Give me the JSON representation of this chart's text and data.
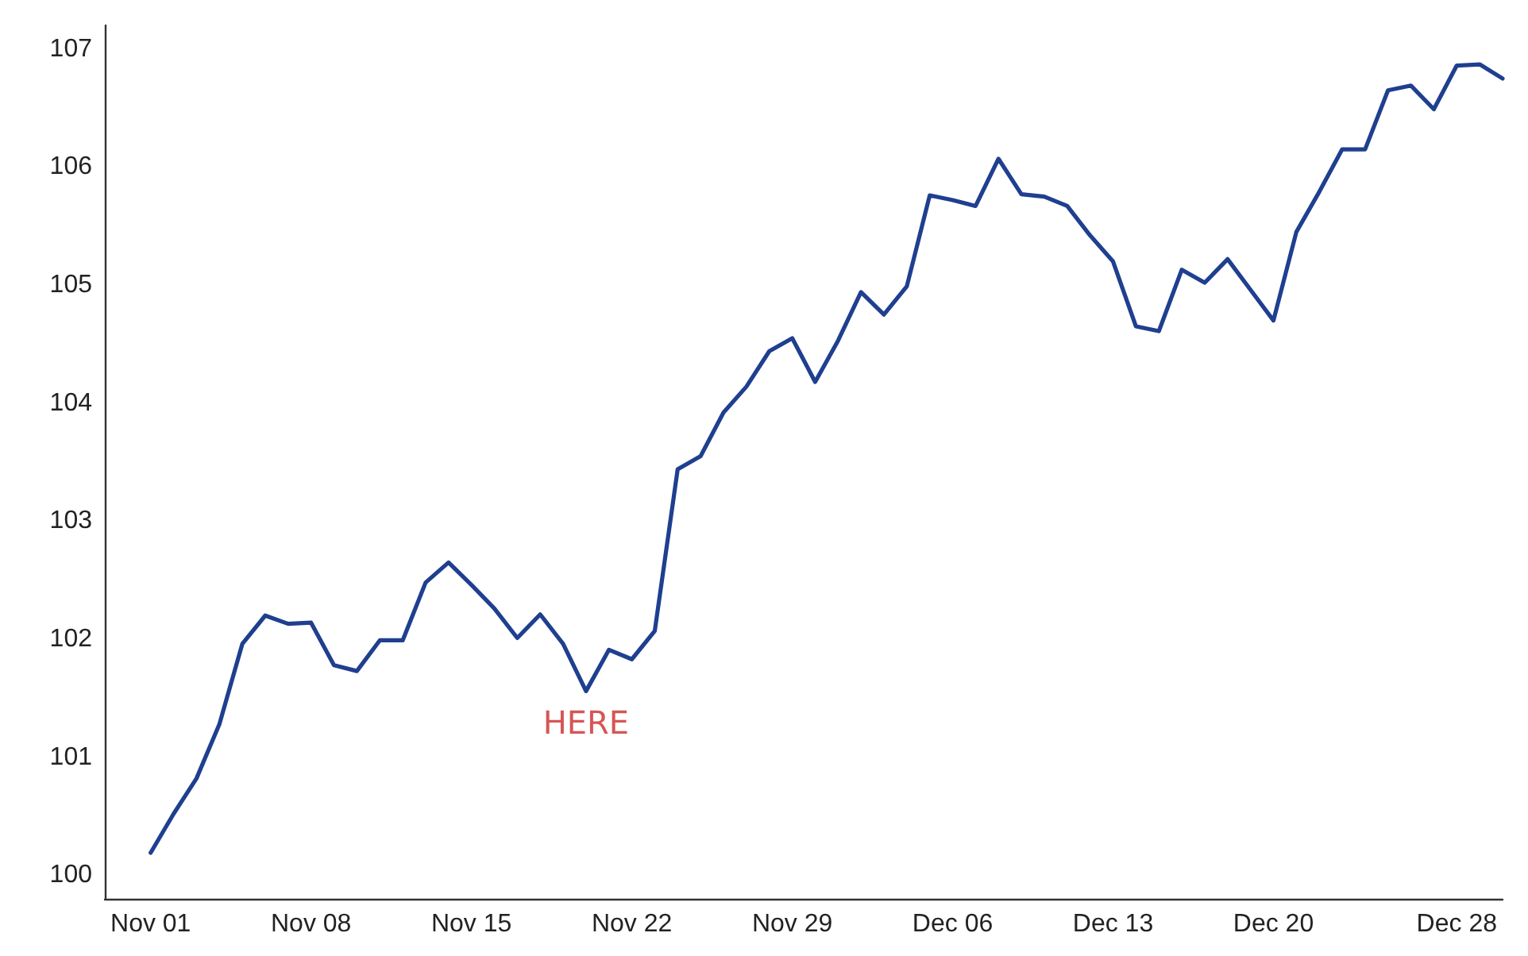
{
  "chart_data": {
    "type": "line",
    "x": [
      "--11-01",
      "--11-02",
      "--11-03",
      "--11-04",
      "--11-05",
      "--11-06",
      "--11-07",
      "--11-08",
      "--11-09",
      "--11-10",
      "--11-11",
      "--11-12",
      "--11-13",
      "--11-14",
      "--11-15",
      "--11-16",
      "--11-17",
      "--11-18",
      "--11-19",
      "--11-20",
      "--11-21",
      "--11-22",
      "--11-23",
      "--11-24",
      "--11-25",
      "--11-26",
      "--11-27",
      "--11-28",
      "--11-29",
      "--11-30",
      "--12-01",
      "--12-02",
      "--12-03",
      "--12-04",
      "--12-05",
      "--12-06",
      "--12-07",
      "--12-08",
      "--12-09",
      "--12-10",
      "--12-11",
      "--12-12",
      "--12-13",
      "--12-14",
      "--12-15",
      "--12-16",
      "--12-17",
      "--12-18",
      "--12-19",
      "--12-20",
      "--12-21",
      "--12-22",
      "--12-23",
      "--12-24",
      "--12-25",
      "--12-26",
      "--12-27",
      "--12-28",
      "--12-29",
      "--12-30"
    ],
    "series": [
      {
        "color": "#1f3f8f",
        "values": [
          100.19,
          100.52,
          100.82,
          101.28,
          101.96,
          102.2,
          102.13,
          102.14,
          101.78,
          101.73,
          101.99,
          101.99,
          102.48,
          102.65,
          102.46,
          102.26,
          102.01,
          102.21,
          101.96,
          101.56,
          101.91,
          101.83,
          102.07,
          103.44,
          103.55,
          103.92,
          104.14,
          104.44,
          104.55,
          104.18,
          104.53,
          104.94,
          104.75,
          104.99,
          105.76,
          105.72,
          105.67,
          106.07,
          105.77,
          105.75,
          105.67,
          105.42,
          105.2,
          104.65,
          104.61,
          105.13,
          105.02,
          105.22,
          104.96,
          104.7,
          105.45,
          105.79,
          106.15,
          106.15,
          106.65,
          106.69,
          106.49,
          106.86,
          106.87,
          106.75
        ]
      }
    ],
    "xlim": [
      "--10-30",
      "--12-30"
    ],
    "xticks": [
      {
        "value": "--11-01",
        "label": "Nov 01"
      },
      {
        "value": "--11-08",
        "label": "Nov 08"
      },
      {
        "value": "--11-15",
        "label": "Nov 15"
      },
      {
        "value": "--11-22",
        "label": "Nov 22"
      },
      {
        "value": "--11-29",
        "label": "Nov 29"
      },
      {
        "value": "--12-06",
        "label": "Dec 06"
      },
      {
        "value": "--12-13",
        "label": "Dec 13"
      },
      {
        "value": "--12-20",
        "label": "Dec 20"
      },
      {
        "value": "--12-28",
        "label": "Dec 28"
      }
    ],
    "ylim": [
      99.8,
      107.2
    ],
    "yticks": [
      100,
      101,
      102,
      103,
      104,
      105,
      106,
      107
    ],
    "annotations": [
      {
        "text": "HERE",
        "x": "--11-20",
        "y": 101.56
      }
    ],
    "grid": false,
    "marker": "none",
    "line_style": "solid"
  }
}
